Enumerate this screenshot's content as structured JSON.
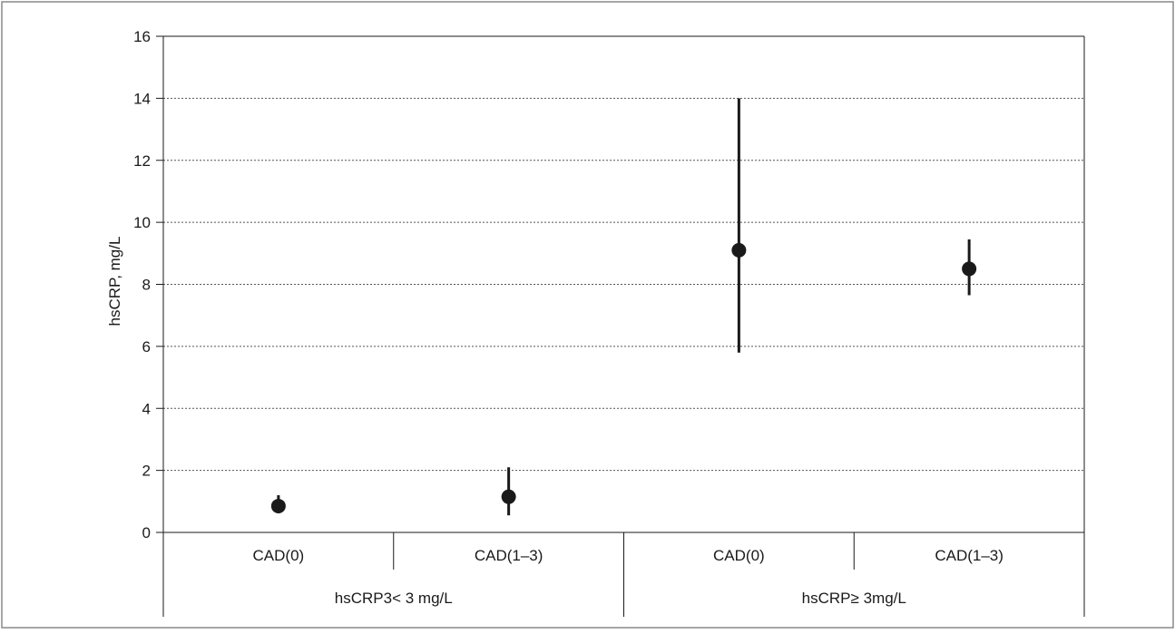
{
  "chart_data": {
    "type": "scatter",
    "ylabel": "hsCRP, mg/L",
    "xlabel": "",
    "ylim": [
      0,
      16
    ],
    "yticks": [
      0,
      2,
      4,
      6,
      8,
      10,
      12,
      14,
      16
    ],
    "grid": "horizontal-dotted",
    "categories": [
      "CAD(0)",
      "CAD(1–3)",
      "CAD(0)",
      "CAD(1–3)"
    ],
    "groups": [
      {
        "label": "hsCRP3< 3 mg/L",
        "span": [
          0,
          1
        ]
      },
      {
        "label": "hsCRP≥ 3mg/L",
        "span": [
          2,
          3
        ]
      }
    ],
    "series": [
      {
        "values": [
          0.85,
          1.15,
          9.1,
          8.5
        ],
        "error_low": [
          0.85,
          0.55,
          5.8,
          7.65
        ],
        "error_high": [
          1.2,
          2.1,
          14.0,
          9.45
        ]
      }
    ],
    "colors": {
      "marker": "#1a1a1a",
      "grid": "#555555",
      "axis": "#1a1a1a",
      "frame": "#888888"
    }
  }
}
